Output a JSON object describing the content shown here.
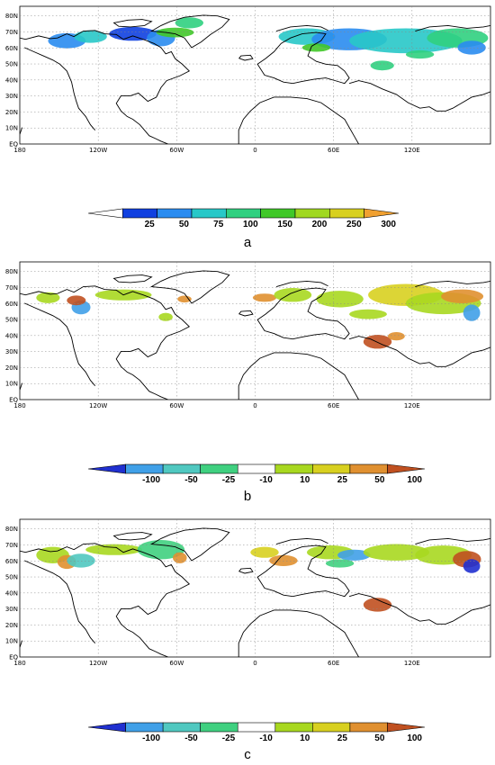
{
  "longitude_labels": [
    "180",
    "120W",
    "60W",
    "0",
    "60E",
    "120E"
  ],
  "latitude_labels": [
    "EQ",
    "10N",
    "20N",
    "30N",
    "40N",
    "50N",
    "60N",
    "70N",
    "80N"
  ],
  "panels": [
    {
      "label": "a",
      "colorbar": {
        "labels": [
          "25",
          "50",
          "75",
          "100",
          "150",
          "200",
          "250",
          "300"
        ],
        "colors": [
          "#ffffff",
          "#1040e0",
          "#2a8cf0",
          "#28c8c8",
          "#30d080",
          "#40c828",
          "#a0d820",
          "#d8d020",
          "#f0a030"
        ]
      }
    },
    {
      "label": "b",
      "colorbar": {
        "labels": [
          "-100",
          "-50",
          "-25",
          "-10",
          "10",
          "25",
          "50",
          "100"
        ],
        "colors": [
          "#2030d0",
          "#40a0e8",
          "#50c8c0",
          "#40d080",
          "#ffffff",
          "#a8d820",
          "#d8d020",
          "#e09030",
          "#c05020"
        ]
      }
    },
    {
      "label": "c",
      "colorbar": {
        "labels": [
          "-100",
          "-50",
          "-25",
          "-10",
          "10",
          "25",
          "50",
          "100"
        ],
        "colors": [
          "#2030d0",
          "#40a0e8",
          "#50c8c0",
          "#40d080",
          "#ffffff",
          "#a8d820",
          "#d8d020",
          "#e09030",
          "#c05020"
        ]
      }
    }
  ]
}
